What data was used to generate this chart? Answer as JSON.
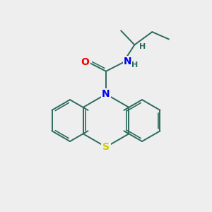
{
  "background_color": "#eeeeee",
  "bond_color": "#2d6b5e",
  "N_color": "#0000ee",
  "O_color": "#ee0000",
  "S_color": "#cccc00",
  "H_color": "#2d6b5e",
  "font_size": 9,
  "figsize": [
    3.0,
    3.0
  ],
  "dpi": 100,
  "xlim": [
    0,
    10
  ],
  "ylim": [
    0,
    10
  ]
}
